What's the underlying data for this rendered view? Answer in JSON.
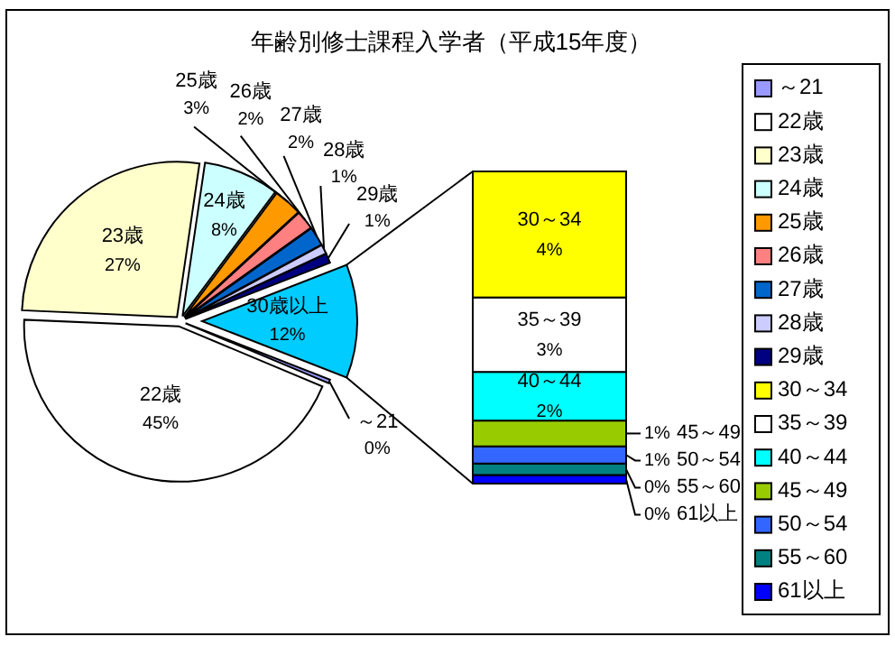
{
  "chart_data": [
    {
      "type": "pie",
      "title": "年齢別修士課程入学者（平成15年度）",
      "categories": [
        "～21",
        "22歳",
        "23歳",
        "24歳",
        "25歳",
        "26歳",
        "27歳",
        "28歳",
        "29歳",
        "30歳以上"
      ],
      "values": [
        0.4,
        45,
        27,
        8,
        3,
        2,
        2,
        1,
        1,
        12
      ],
      "colors": [
        "#9999ff",
        "#ffffff",
        "#ffffcc",
        "#ccffff",
        "#ff9900",
        "#ff8080",
        "#0066cc",
        "#ccccff",
        "#000080",
        "#00ccff"
      ],
      "value_labels": [
        "0%",
        "45%",
        "27%",
        "8%",
        "3%",
        "2%",
        "2%",
        "1%",
        "1%",
        "12%"
      ],
      "legend": "right"
    },
    {
      "type": "bar",
      "stacked": true,
      "categories": [
        null
      ],
      "series": [
        {
          "name": "61以上",
          "color": "#0000ff",
          "values": [
            0.3
          ],
          "value_labels": [
            "0%"
          ]
        },
        {
          "name": "55～60",
          "color": "#008080",
          "values": [
            0.4
          ],
          "value_labels": [
            "0%"
          ]
        },
        {
          "name": "50～54",
          "color": "#3366ff",
          "values": [
            0.6
          ],
          "value_labels": [
            "1%"
          ]
        },
        {
          "name": "45～49",
          "color": "#99cc00",
          "values": [
            0.9
          ],
          "value_labels": [
            "1%"
          ]
        },
        {
          "name": "40～44",
          "color": "#00ffff",
          "values": [
            1.7
          ],
          "value_labels": [
            "2%"
          ]
        },
        {
          "name": "35～39",
          "color": "#ffffff",
          "values": [
            2.6
          ],
          "value_labels": [
            "3%"
          ]
        },
        {
          "name": "30～34",
          "color": "#ffff00",
          "values": [
            4.4
          ],
          "value_labels": [
            "4%"
          ]
        }
      ],
      "legend": "right"
    }
  ]
}
